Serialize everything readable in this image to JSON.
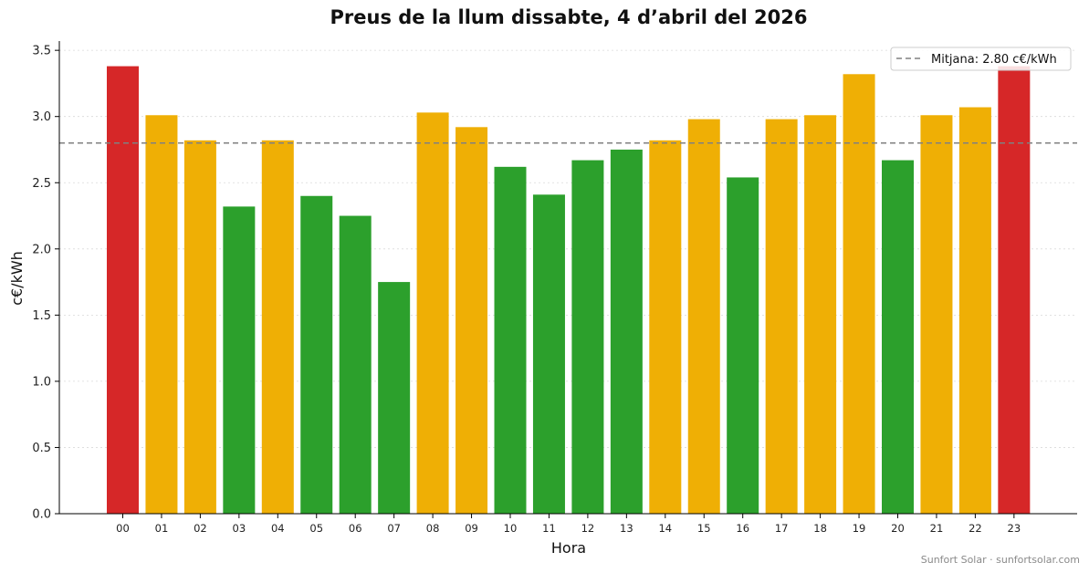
{
  "colors": {
    "high": "#d62728",
    "mid": "#efaf05",
    "low": "#2ca02c",
    "mean_line": "#808080",
    "grid": "#d9d9d9"
  },
  "chart_data": {
    "type": "bar",
    "title": "Preus de la llum dissabte, 4 d’abril del 2026",
    "xlabel": "Hora",
    "ylabel": "c€/kWh",
    "ylim": [
      0,
      3.57
    ],
    "yticks": [
      "0.0",
      "0.5",
      "1.0",
      "1.5",
      "2.0",
      "2.5",
      "3.0",
      "3.5"
    ],
    "categories": [
      "00",
      "01",
      "02",
      "03",
      "04",
      "05",
      "06",
      "07",
      "08",
      "09",
      "10",
      "11",
      "12",
      "13",
      "14",
      "15",
      "16",
      "17",
      "18",
      "19",
      "20",
      "21",
      "22",
      "23"
    ],
    "values": [
      3.38,
      3.01,
      2.82,
      2.32,
      2.82,
      2.4,
      2.25,
      1.75,
      3.03,
      2.92,
      2.62,
      2.41,
      2.67,
      2.75,
      2.82,
      2.98,
      2.54,
      2.98,
      3.01,
      3.32,
      2.67,
      3.01,
      3.07,
      3.38
    ],
    "bar_levels": [
      "high",
      "mid",
      "mid",
      "low",
      "mid",
      "low",
      "low",
      "low",
      "mid",
      "mid",
      "low",
      "low",
      "low",
      "low",
      "mid",
      "mid",
      "low",
      "mid",
      "mid",
      "mid",
      "low",
      "mid",
      "mid",
      "high"
    ],
    "mean": 2.8,
    "legend": {
      "position": "top-right",
      "label": "Mitjana: 2.80 c€/kWh"
    },
    "grid": {
      "y": true,
      "style": "dotted"
    }
  },
  "footer": {
    "credit": "Sunfort Solar · sunfortsolar.com"
  }
}
